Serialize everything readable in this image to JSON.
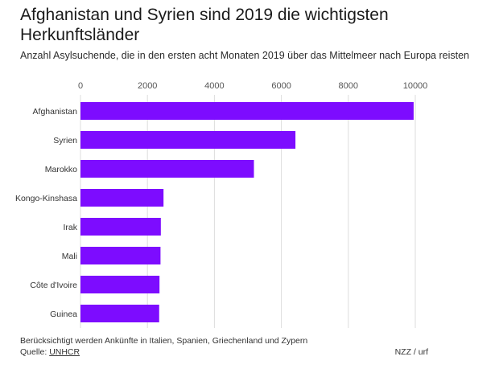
{
  "title": "Afghanistan und Syrien sind 2019 die wichtigsten Herkunftsländer",
  "subtitle": "Anzahl Asylsuchende, die in den ersten acht Monaten 2019 über das Mittelmeer nach Europa reisten",
  "footer": {
    "note": "Berücksichtigt werden Ankünfte in Italien, Spanien, Griechenland und Zypern",
    "source_label": "Quelle: ",
    "source_link": "UNHCR",
    "credit": "NZZ / urf"
  },
  "colors": {
    "bar": "#7d0cff",
    "grid": "#dddddd",
    "tick_text": "#555555"
  },
  "chart_data": {
    "type": "bar",
    "orientation": "horizontal",
    "categories": [
      "Afghanistan",
      "Syrien",
      "Marokko",
      "Kongo-Kinshasa",
      "Irak",
      "Mali",
      "Côte d'Ivoire",
      "Guinea"
    ],
    "values": [
      9950,
      6420,
      5180,
      2480,
      2400,
      2390,
      2360,
      2350
    ],
    "xlim": [
      0,
      10000
    ],
    "xticks": [
      0,
      2000,
      4000,
      6000,
      8000,
      10000
    ],
    "xtick_labels": [
      "0",
      "2000",
      "4000",
      "6000",
      "8000",
      "10000"
    ],
    "grid": true,
    "xaxis_position": "top"
  }
}
